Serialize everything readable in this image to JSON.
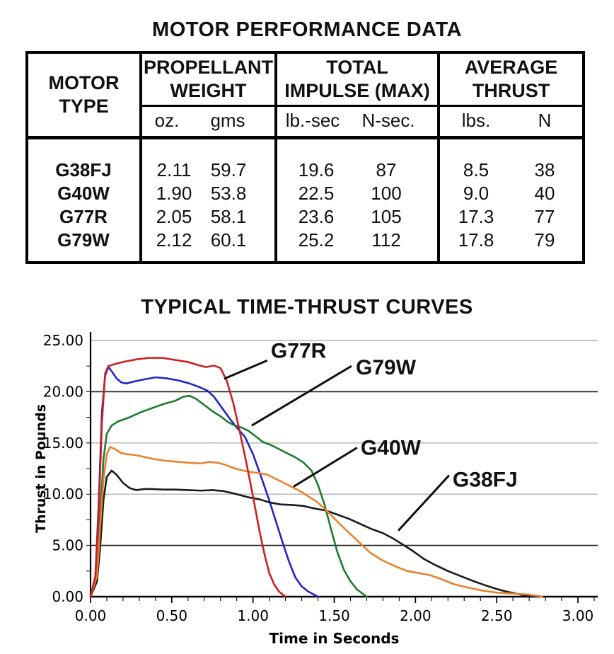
{
  "table": {
    "title": "MOTOR PERFORMANCE DATA",
    "col_groups": [
      {
        "title_lines": [
          "MOTOR",
          "TYPE"
        ],
        "sub": []
      },
      {
        "title_lines": [
          "PROPELLANT",
          "WEIGHT"
        ],
        "sub": [
          "oz.",
          "gms"
        ]
      },
      {
        "title_lines": [
          "TOTAL",
          "IMPULSE (MAX)"
        ],
        "sub": [
          "lb.-sec",
          "N-sec."
        ]
      },
      {
        "title_lines": [
          "AVERAGE",
          "THRUST"
        ],
        "sub": [
          "lbs.",
          "N"
        ]
      }
    ],
    "rows": [
      {
        "motor": "G38FJ",
        "values": [
          "2.11",
          "59.7",
          "19.6",
          "87",
          "8.5",
          "38"
        ]
      },
      {
        "motor": "G40W",
        "values": [
          "1.90",
          "53.8",
          "22.5",
          "100",
          "9.0",
          "40"
        ]
      },
      {
        "motor": "G77R",
        "values": [
          "2.05",
          "58.1",
          "23.6",
          "105",
          "17.3",
          "77"
        ]
      },
      {
        "motor": "G79W",
        "values": [
          "2.12",
          "60.1",
          "25.2",
          "112",
          "17.8",
          "79"
        ]
      }
    ]
  },
  "chart_data": {
    "type": "line",
    "title": "TYPICAL TIME-THRUST CURVES",
    "xlabel": "Time in Seconds",
    "ylabel": "Thrust in Pounds",
    "xlim": [
      0,
      3.0
    ],
    "ylim": [
      0,
      25
    ],
    "x_ticks": [
      0,
      0.5,
      1.0,
      1.5,
      2.0,
      2.5,
      3.0
    ],
    "x_tick_labels": [
      "0.00",
      "0.50",
      "1.00",
      "1.50",
      "2.00",
      "2.50",
      "3.00"
    ],
    "x_minor_step": 0.1,
    "y_ticks": [
      5,
      10,
      15,
      20,
      25
    ],
    "y_tick_labels": [
      "5.00",
      "10.00",
      "15.00",
      "20.00",
      "25.00"
    ],
    "y_zero_label": "0.00",
    "dark_gridlines": [
      5,
      20
    ],
    "grid": "horizontal",
    "legend": "none",
    "colors": {
      "grid_light": "#b3b3b3",
      "grid_dark": "#1a1a1a",
      "axis": "#000000",
      "leader": "#111111"
    },
    "series": [
      {
        "name": "(unlabeled)",
        "color": "#2323c8",
        "points": [
          [
            0,
            0
          ],
          [
            0.03,
            2
          ],
          [
            0.05,
            9
          ],
          [
            0.07,
            18
          ],
          [
            0.09,
            21.6
          ],
          [
            0.11,
            22.4
          ],
          [
            0.13,
            22.0
          ],
          [
            0.16,
            21.3
          ],
          [
            0.19,
            20.9
          ],
          [
            0.22,
            20.8
          ],
          [
            0.27,
            21.0
          ],
          [
            0.33,
            21.2
          ],
          [
            0.4,
            21.4
          ],
          [
            0.47,
            21.3
          ],
          [
            0.54,
            21.1
          ],
          [
            0.61,
            20.8
          ],
          [
            0.67,
            20.45
          ],
          [
            0.72,
            20.1
          ],
          [
            0.76,
            19.5
          ],
          [
            0.81,
            18.4
          ],
          [
            0.86,
            17.3
          ],
          [
            0.9,
            16.5
          ],
          [
            0.95,
            15.6
          ],
          [
            1.0,
            13.9
          ],
          [
            1.05,
            11.7
          ],
          [
            1.1,
            9.4
          ],
          [
            1.14,
            7.4
          ],
          [
            1.18,
            5.4
          ],
          [
            1.22,
            3.5
          ],
          [
            1.26,
            1.9
          ],
          [
            1.3,
            1.0
          ],
          [
            1.34,
            0.5
          ],
          [
            1.4,
            0
          ]
        ]
      },
      {
        "name": "G79W",
        "color": "#1e7b2e",
        "points": [
          [
            0,
            0
          ],
          [
            0.04,
            2
          ],
          [
            0.06,
            8
          ],
          [
            0.08,
            13.5
          ],
          [
            0.1,
            15.9
          ],
          [
            0.13,
            16.7
          ],
          [
            0.17,
            17.1
          ],
          [
            0.24,
            17.5
          ],
          [
            0.31,
            18.0
          ],
          [
            0.38,
            18.4
          ],
          [
            0.45,
            18.8
          ],
          [
            0.52,
            19.1
          ],
          [
            0.57,
            19.5
          ],
          [
            0.61,
            19.6
          ],
          [
            0.65,
            19.3
          ],
          [
            0.7,
            18.7
          ],
          [
            0.75,
            18.1
          ],
          [
            0.8,
            17.6
          ],
          [
            0.84,
            17.1
          ],
          [
            0.88,
            16.75
          ],
          [
            0.93,
            16.5
          ],
          [
            0.97,
            16.2
          ],
          [
            1.02,
            15.6
          ],
          [
            1.06,
            15.1
          ],
          [
            1.11,
            14.8
          ],
          [
            1.16,
            14.4
          ],
          [
            1.21,
            14.0
          ],
          [
            1.26,
            13.6
          ],
          [
            1.31,
            13.1
          ],
          [
            1.36,
            12.3
          ],
          [
            1.4,
            10.9
          ],
          [
            1.44,
            9.0
          ],
          [
            1.48,
            6.6
          ],
          [
            1.52,
            4.3
          ],
          [
            1.56,
            2.6
          ],
          [
            1.6,
            1.5
          ],
          [
            1.64,
            0.7
          ],
          [
            1.7,
            0
          ]
        ]
      },
      {
        "name": "G38FJ",
        "color": "#1a1a1a",
        "points": [
          [
            0,
            0
          ],
          [
            0.04,
            1.5
          ],
          [
            0.06,
            5
          ],
          [
            0.08,
            9.5
          ],
          [
            0.1,
            11.7
          ],
          [
            0.13,
            12.3
          ],
          [
            0.16,
            11.9
          ],
          [
            0.2,
            11.1
          ],
          [
            0.24,
            10.6
          ],
          [
            0.28,
            10.4
          ],
          [
            0.33,
            10.5
          ],
          [
            0.38,
            10.5
          ],
          [
            0.45,
            10.45
          ],
          [
            0.52,
            10.45
          ],
          [
            0.6,
            10.4
          ],
          [
            0.68,
            10.35
          ],
          [
            0.75,
            10.4
          ],
          [
            0.82,
            10.3
          ],
          [
            0.9,
            10.0
          ],
          [
            0.97,
            9.7
          ],
          [
            1.04,
            9.5
          ],
          [
            1.1,
            9.2
          ],
          [
            1.17,
            9.0
          ],
          [
            1.24,
            8.95
          ],
          [
            1.31,
            8.85
          ],
          [
            1.38,
            8.6
          ],
          [
            1.45,
            8.4
          ],
          [
            1.52,
            8.0
          ],
          [
            1.59,
            7.6
          ],
          [
            1.66,
            7.1
          ],
          [
            1.73,
            6.6
          ],
          [
            1.8,
            6.2
          ],
          [
            1.86,
            5.7
          ],
          [
            1.92,
            5.1
          ],
          [
            1.98,
            4.5
          ],
          [
            2.05,
            3.7
          ],
          [
            2.12,
            3.1
          ],
          [
            2.2,
            2.5
          ],
          [
            2.28,
            2.0
          ],
          [
            2.36,
            1.5
          ],
          [
            2.44,
            1.05
          ],
          [
            2.5,
            0.75
          ],
          [
            2.56,
            0.5
          ],
          [
            2.62,
            0.3
          ],
          [
            2.68,
            0.1
          ],
          [
            2.72,
            0
          ]
        ]
      },
      {
        "name": "G40W",
        "color": "#e8822e",
        "points": [
          [
            0,
            0
          ],
          [
            0.04,
            2
          ],
          [
            0.06,
            7
          ],
          [
            0.08,
            11.5
          ],
          [
            0.1,
            13.9
          ],
          [
            0.12,
            14.6
          ],
          [
            0.15,
            14.4
          ],
          [
            0.19,
            14.0
          ],
          [
            0.23,
            13.9
          ],
          [
            0.28,
            13.8
          ],
          [
            0.34,
            13.6
          ],
          [
            0.4,
            13.4
          ],
          [
            0.47,
            13.25
          ],
          [
            0.54,
            13.15
          ],
          [
            0.62,
            13.05
          ],
          [
            0.68,
            13.0
          ],
          [
            0.73,
            13.15
          ],
          [
            0.79,
            13.05
          ],
          [
            0.84,
            12.8
          ],
          [
            0.89,
            12.5
          ],
          [
            0.94,
            12.3
          ],
          [
            0.99,
            12.15
          ],
          [
            1.04,
            12.05
          ],
          [
            1.09,
            11.9
          ],
          [
            1.14,
            11.5
          ],
          [
            1.19,
            11.1
          ],
          [
            1.24,
            10.7
          ],
          [
            1.29,
            10.3
          ],
          [
            1.34,
            9.8
          ],
          [
            1.39,
            9.3
          ],
          [
            1.44,
            8.6
          ],
          [
            1.49,
            7.8
          ],
          [
            1.54,
            7.0
          ],
          [
            1.6,
            6.1
          ],
          [
            1.66,
            5.2
          ],
          [
            1.72,
            4.3
          ],
          [
            1.79,
            3.6
          ],
          [
            1.87,
            3.0
          ],
          [
            1.95,
            2.5
          ],
          [
            2.02,
            2.3
          ],
          [
            2.09,
            2.1
          ],
          [
            2.16,
            1.7
          ],
          [
            2.24,
            1.2
          ],
          [
            2.32,
            0.9
          ],
          [
            2.41,
            0.6
          ],
          [
            2.5,
            0.4
          ],
          [
            2.6,
            0.3
          ],
          [
            2.7,
            0.2
          ],
          [
            2.78,
            0
          ]
        ]
      },
      {
        "name": "G77R",
        "color": "#cc2020",
        "points": [
          [
            0,
            0
          ],
          [
            0.03,
            2
          ],
          [
            0.05,
            8
          ],
          [
            0.07,
            17
          ],
          [
            0.09,
            21.8
          ],
          [
            0.11,
            22.5
          ],
          [
            0.15,
            22.7
          ],
          [
            0.2,
            22.9
          ],
          [
            0.28,
            23.15
          ],
          [
            0.36,
            23.3
          ],
          [
            0.44,
            23.3
          ],
          [
            0.52,
            23.1
          ],
          [
            0.6,
            22.9
          ],
          [
            0.66,
            22.6
          ],
          [
            0.71,
            22.4
          ],
          [
            0.76,
            22.55
          ],
          [
            0.8,
            22.3
          ],
          [
            0.84,
            21.0
          ],
          [
            0.88,
            18.8
          ],
          [
            0.92,
            16.0
          ],
          [
            0.96,
            13.0
          ],
          [
            1.0,
            9.8
          ],
          [
            1.04,
            6.4
          ],
          [
            1.07,
            4.2
          ],
          [
            1.1,
            2.3
          ],
          [
            1.13,
            1.2
          ],
          [
            1.16,
            0.5
          ],
          [
            1.2,
            0
          ]
        ]
      }
    ],
    "annotations": [
      {
        "label": "G77R",
        "text_at": [
          1.11,
          23.3
        ],
        "leader": [
          [
            1.088,
            23.05
          ],
          [
            0.823,
            21.26
          ]
        ]
      },
      {
        "label": "G79W",
        "text_at": [
          1.633,
          21.7
        ],
        "leader": [
          [
            1.606,
            22.5
          ],
          [
            0.992,
            16.7
          ]
        ]
      },
      {
        "label": "G40W",
        "text_at": [
          1.663,
          13.85
        ],
        "leader": [
          [
            1.641,
            14.54
          ],
          [
            1.249,
            10.73
          ]
        ]
      },
      {
        "label": "G38FJ",
        "text_at": [
          2.229,
          10.73
        ],
        "leader": [
          [
            2.207,
            11.84
          ],
          [
            1.894,
            6.44
          ]
        ]
      }
    ]
  }
}
